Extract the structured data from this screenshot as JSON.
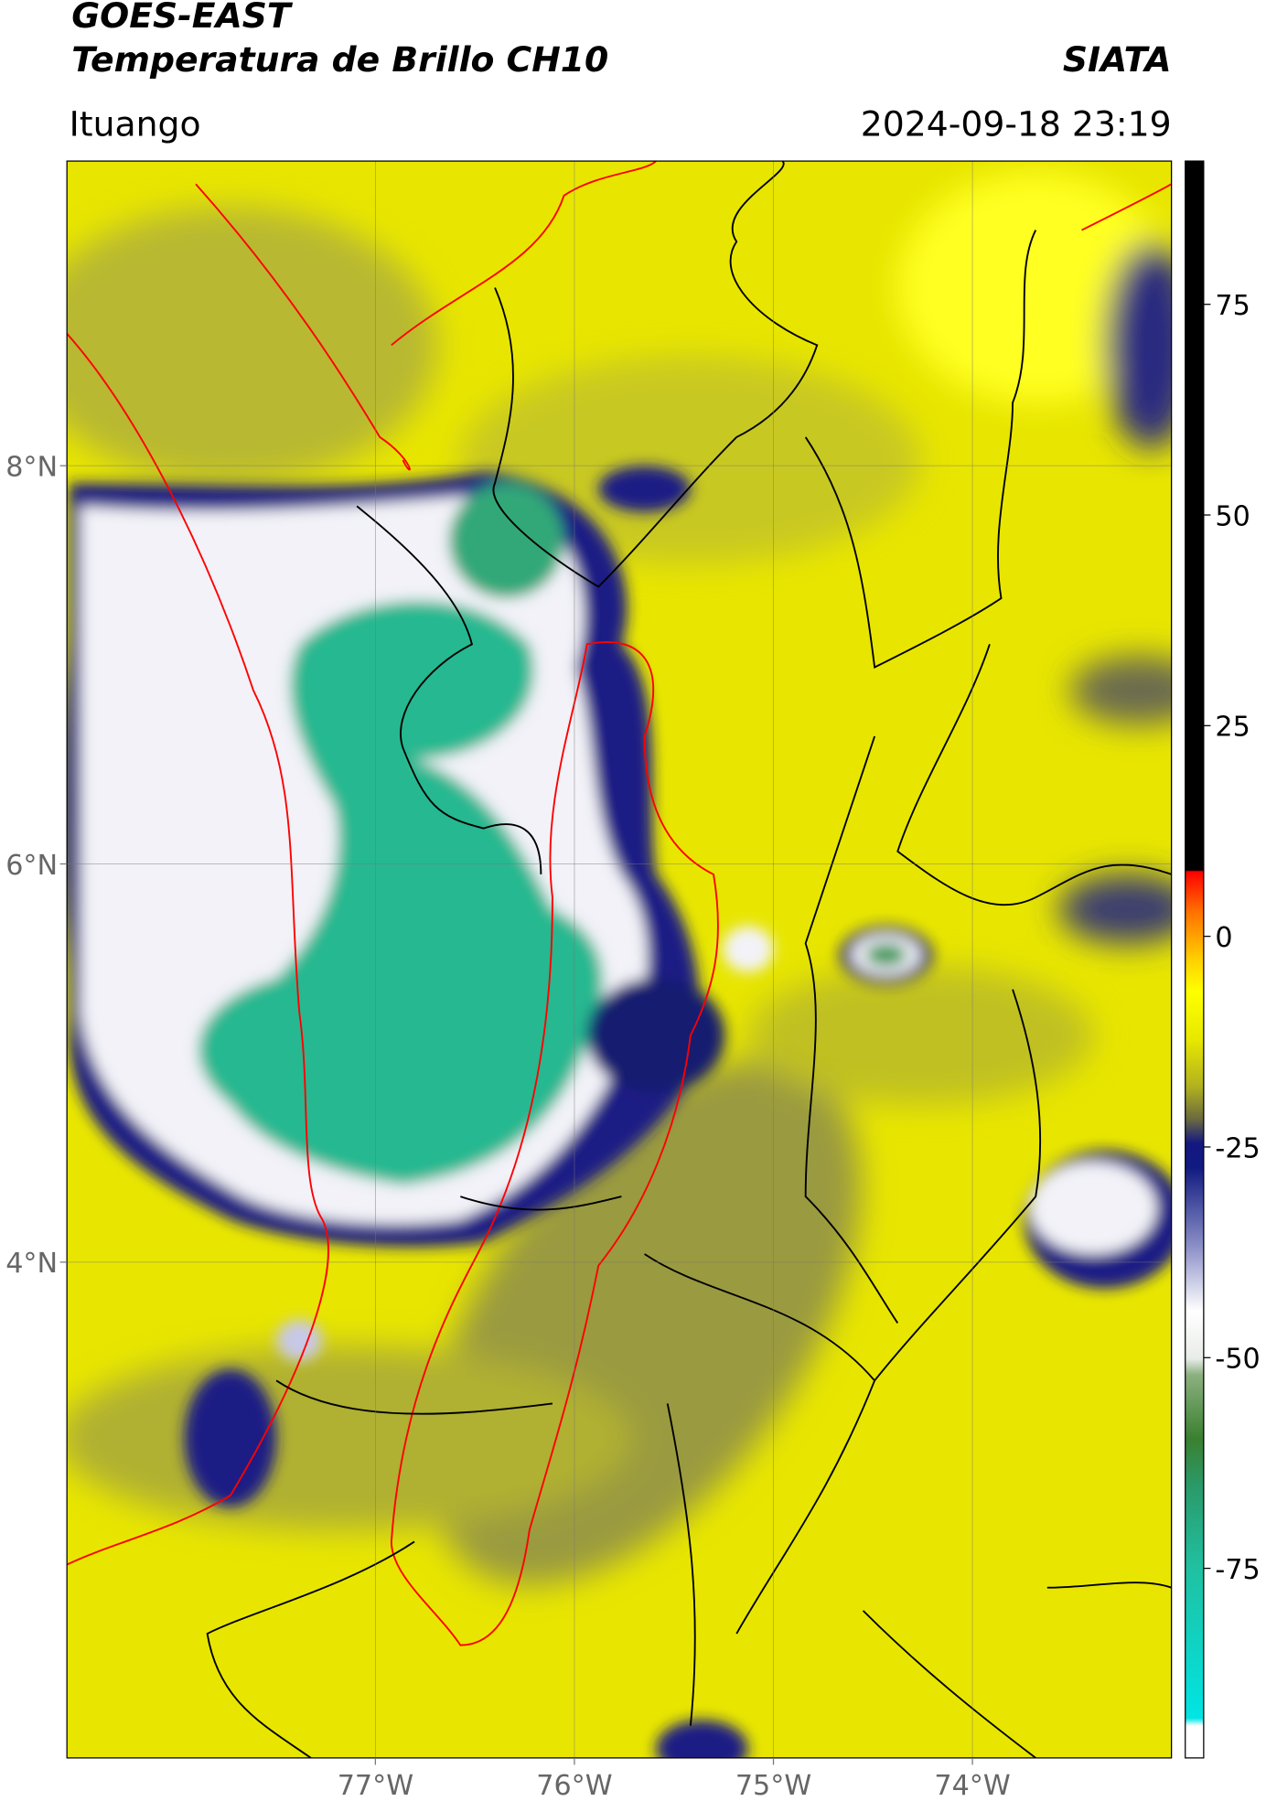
{
  "map": {
    "title": "GOES-EAST",
    "subtitle": "Temperatura de Brillo CH10",
    "source": "SIATA",
    "region": "Ituango",
    "datetime": "2024-09-18 23:19",
    "latlim": [
      1.51,
      9.53
    ],
    "lonlim": [
      -78.55,
      -73.0
    ],
    "latticks": [
      {
        "value": 8,
        "label": "8°N"
      },
      {
        "value": 6,
        "label": "6°N"
      },
      {
        "value": 4,
        "label": "4°N"
      }
    ],
    "lonticks": [
      {
        "value": -77,
        "label": "77°W"
      },
      {
        "value": -76,
        "label": "76°W"
      },
      {
        "value": -75,
        "label": "75°W"
      },
      {
        "value": -74,
        "label": "74°W"
      }
    ],
    "colorbar": {
      "lim": [
        -97.5,
        92
      ],
      "ticks": [
        75,
        50,
        25,
        0,
        -25,
        -50,
        -75
      ]
    }
  }
}
